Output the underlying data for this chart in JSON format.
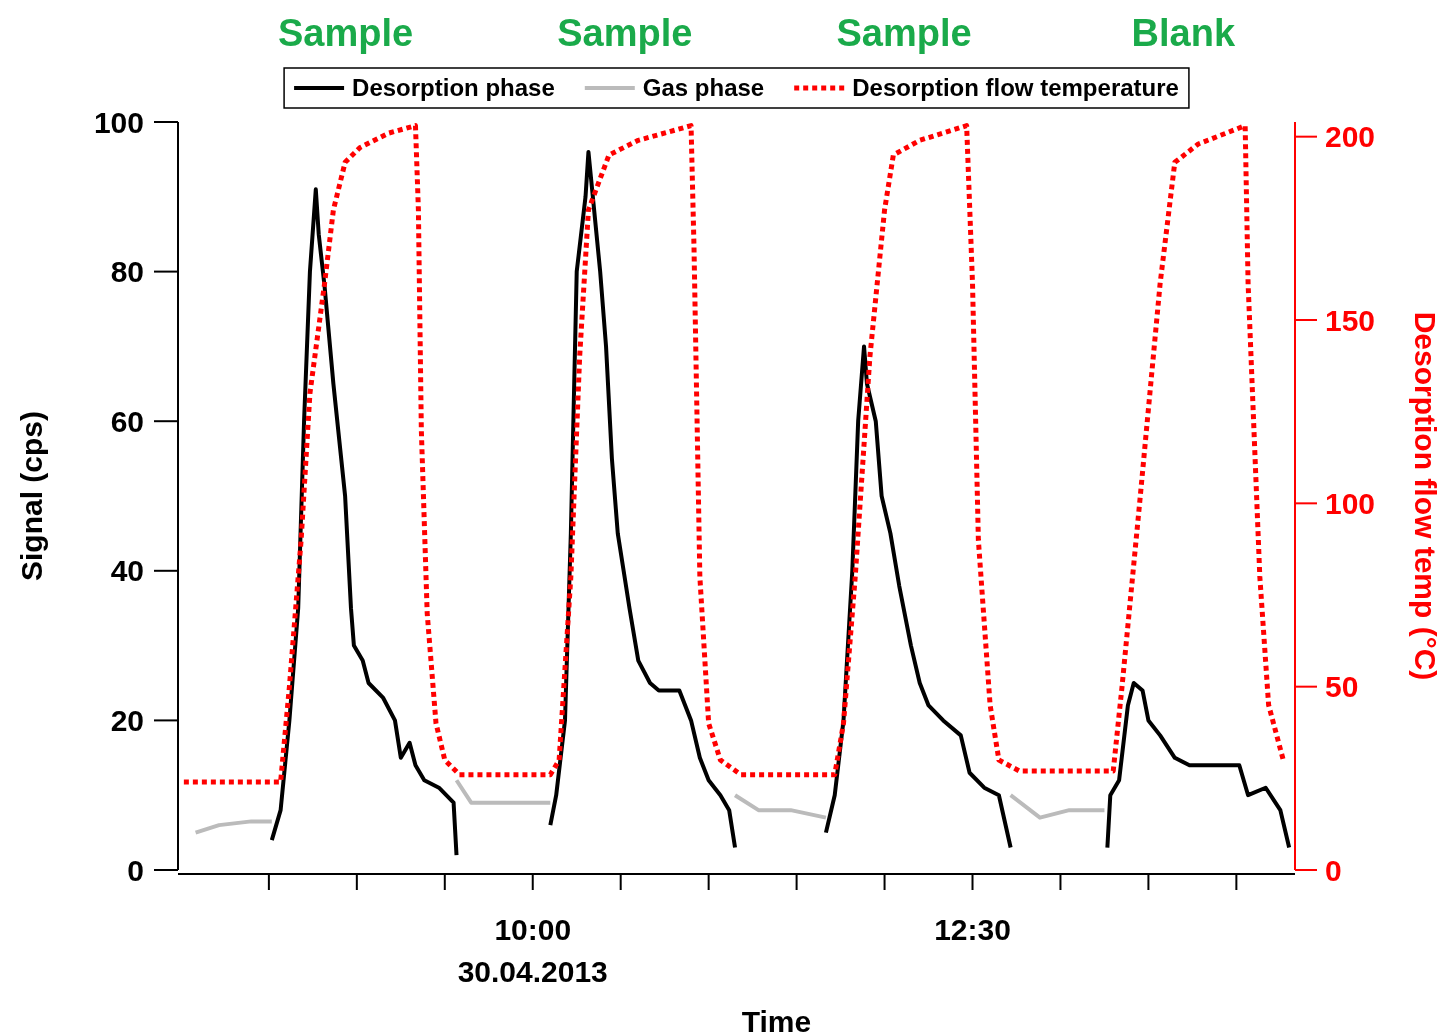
{
  "chart_data": {
    "type": "line",
    "xlabel": "Time",
    "ylabel": "Signal (cps)",
    "y2label": "Desorption flow temp (°C)",
    "annotations": [
      "Sample",
      "Sample",
      "Sample",
      "Blank"
    ],
    "xlim": [
      "2013-04-30T07:59",
      "2013-04-30T14:20"
    ],
    "xticks": [
      {
        "value": "2013-04-30T08:30",
        "label": null
      },
      {
        "value": "2013-04-30T09:00",
        "label": null
      },
      {
        "value": "2013-04-30T09:30",
        "label": null
      },
      {
        "value": "2013-04-30T10:00",
        "label": "10:00\n30.04.2013"
      },
      {
        "value": "2013-04-30T10:30",
        "label": null
      },
      {
        "value": "2013-04-30T11:00",
        "label": null
      },
      {
        "value": "2013-04-30T11:30",
        "label": null
      },
      {
        "value": "2013-04-30T12:00",
        "label": null
      },
      {
        "value": "2013-04-30T12:30",
        "label": "12:30"
      },
      {
        "value": "2013-04-30T13:00",
        "label": null
      },
      {
        "value": "2013-04-30T13:30",
        "label": null
      },
      {
        "value": "2013-04-30T14:00",
        "label": null
      }
    ],
    "ylim": [
      0,
      100
    ],
    "yticks": [
      0,
      20,
      40,
      60,
      80,
      100
    ],
    "y2lim": [
      0,
      204
    ],
    "y2ticks": [
      0,
      50,
      100,
      150,
      200
    ],
    "legend": "top",
    "series": [
      {
        "name": "Desorption phase",
        "color": "#000000",
        "line_style": "solid",
        "x": [
          "2013-04-30T08:31",
          "2013-04-30T08:34",
          "2013-04-30T08:37",
          "2013-04-30T08:40",
          "2013-04-30T08:42",
          "2013-04-30T08:44",
          "2013-04-30T08:46",
          "2013-04-30T08:47",
          "2013-04-30T08:49",
          "2013-04-30T08:52",
          "2013-04-30T08:56",
          "2013-04-30T08:58",
          "2013-04-30T08:59",
          "2013-04-30T09:02",
          "2013-04-30T09:04",
          "2013-04-30T09:09",
          "2013-04-30T09:13",
          "2013-04-30T09:15",
          "2013-04-30T09:18",
          "2013-04-30T09:20",
          "2013-04-30T09:23",
          "2013-04-30T09:28",
          "2013-04-30T09:33",
          "2013-04-30T09:34",
          "2013-04-30T09:50",
          "2013-04-30T10:06",
          "2013-04-30T10:08",
          "2013-04-30T10:11",
          "2013-04-30T10:13",
          "2013-04-30T10:15",
          "2013-04-30T10:18",
          "2013-04-30T10:19",
          "2013-04-30T10:21",
          "2013-04-30T10:23",
          "2013-04-30T10:25",
          "2013-04-30T10:27",
          "2013-04-30T10:29",
          "2013-04-30T10:31",
          "2013-04-30T10:33",
          "2013-04-30T10:36",
          "2013-04-30T10:40",
          "2013-04-30T10:43",
          "2013-04-30T10:50",
          "2013-04-30T10:54",
          "2013-04-30T10:57",
          "2013-04-30T11:00",
          "2013-04-30T11:04",
          "2013-04-30T11:07",
          "2013-04-30T11:09",
          "2013-04-30T11:25",
          "2013-04-30T11:40",
          "2013-04-30T11:43",
          "2013-04-30T11:46",
          "2013-04-30T11:49",
          "2013-04-30T11:51",
          "2013-04-30T11:53",
          "2013-04-30T11:54",
          "2013-04-30T11:57",
          "2013-04-30T11:59",
          "2013-04-30T12:02",
          "2013-04-30T12:05",
          "2013-04-30T12:09",
          "2013-04-30T12:12",
          "2013-04-30T12:15",
          "2013-04-30T12:20",
          "2013-04-30T12:26",
          "2013-04-30T12:29",
          "2013-04-30T12:34",
          "2013-04-30T12:39",
          "2013-04-30T12:43",
          "2013-04-30T13:00",
          "2013-04-30T13:16",
          "2013-04-30T13:17",
          "2013-04-30T13:20",
          "2013-04-30T13:23",
          "2013-04-30T13:25",
          "2013-04-30T13:28",
          "2013-04-30T13:30",
          "2013-04-30T13:34",
          "2013-04-30T13:39",
          "2013-04-30T13:44",
          "2013-04-30T13:51",
          "2013-04-30T14:01",
          "2013-04-30T14:04",
          "2013-04-30T14:10",
          "2013-04-30T14:15",
          "2013-04-30T14:18"
        ],
        "values": [
          4,
          8,
          20,
          35,
          60,
          80,
          91,
          85,
          78,
          65,
          50,
          35,
          30,
          28,
          25,
          23,
          20,
          15,
          17,
          14,
          12,
          11,
          9,
          2,
          null,
          6,
          10,
          20,
          45,
          80,
          90,
          96,
          88,
          80,
          70,
          55,
          45,
          40,
          35,
          28,
          25,
          24,
          24,
          20,
          15,
          12,
          10,
          8,
          3,
          null,
          5,
          10,
          20,
          40,
          60,
          70,
          65,
          60,
          50,
          45,
          38,
          30,
          25,
          22,
          20,
          18,
          13,
          11,
          10,
          3,
          null,
          3,
          10,
          12,
          22,
          25,
          24,
          20,
          18,
          15,
          14,
          14,
          14,
          10,
          11,
          8,
          3
        ]
      },
      {
        "name": "Gas phase",
        "color": "#bbbbbb",
        "line_style": "solid",
        "x": [
          "2013-04-30T08:05",
          "2013-04-30T08:13",
          "2013-04-30T08:24",
          "2013-04-30T08:31",
          "2013-04-30T09:00",
          "2013-04-30T09:34",
          "2013-04-30T09:39",
          "2013-04-30T09:49",
          "2013-04-30T09:59",
          "2013-04-30T10:06",
          "2013-04-30T10:40",
          "2013-04-30T11:09",
          "2013-04-30T11:17",
          "2013-04-30T11:28",
          "2013-04-30T11:40",
          "2013-04-30T12:10",
          "2013-04-30T12:43",
          "2013-04-30T12:53",
          "2013-04-30T13:03",
          "2013-04-30T13:15"
        ],
        "values": [
          5,
          6,
          6.5,
          6.5,
          null,
          12,
          9,
          9,
          9,
          9,
          null,
          10,
          8,
          8,
          7,
          null,
          10,
          7,
          8,
          8
        ]
      },
      {
        "name": "Desorption flow temperature",
        "color": "#ff0000",
        "axis": "y2",
        "line_style": "dotted",
        "x": [
          "2013-04-30T08:01",
          "2013-04-30T08:34",
          "2013-04-30T08:37",
          "2013-04-30T08:41",
          "2013-04-30T08:44",
          "2013-04-30T08:49",
          "2013-04-30T08:52",
          "2013-04-30T08:56",
          "2013-04-30T09:01",
          "2013-04-30T09:11",
          "2013-04-30T09:20",
          "2013-04-30T09:21",
          "2013-04-30T09:22",
          "2013-04-30T09:24",
          "2013-04-30T09:27",
          "2013-04-30T09:30",
          "2013-04-30T09:35",
          "2013-04-30T10:06",
          "2013-04-30T10:09",
          "2013-04-30T10:13",
          "2013-04-30T10:16",
          "2013-04-30T10:19",
          "2013-04-30T10:26",
          "2013-04-30T10:36",
          "2013-04-30T10:54",
          "2013-04-30T10:55",
          "2013-04-30T10:57",
          "2013-04-30T11:00",
          "2013-04-30T11:04",
          "2013-04-30T11:11",
          "2013-04-30T11:43",
          "2013-04-30T11:46",
          "2013-04-30T11:50",
          "2013-04-30T11:55",
          "2013-04-30T12:00",
          "2013-04-30T12:03",
          "2013-04-30T12:12",
          "2013-04-30T12:28",
          "2013-04-30T12:30",
          "2013-04-30T12:32",
          "2013-04-30T12:36",
          "2013-04-30T12:39",
          "2013-04-30T12:46",
          "2013-04-30T13:18",
          "2013-04-30T13:21",
          "2013-04-30T13:27",
          "2013-04-30T13:34",
          "2013-04-30T13:39",
          "2013-04-30T13:47",
          "2013-04-30T14:03",
          "2013-04-30T14:04",
          "2013-04-30T14:08",
          "2013-04-30T14:11",
          "2013-04-30T14:16"
        ],
        "values": [
          24,
          24,
          50,
          90,
          130,
          160,
          180,
          193,
          197,
          201,
          203,
          180,
          120,
          70,
          40,
          30,
          26,
          26,
          30,
          80,
          140,
          180,
          195,
          199,
          203,
          170,
          80,
          40,
          30,
          26,
          26,
          40,
          80,
          140,
          180,
          195,
          199,
          203,
          160,
          90,
          45,
          30,
          27,
          27,
          50,
          100,
          160,
          193,
          198,
          203,
          160,
          80,
          45,
          30
        ]
      }
    ]
  }
}
